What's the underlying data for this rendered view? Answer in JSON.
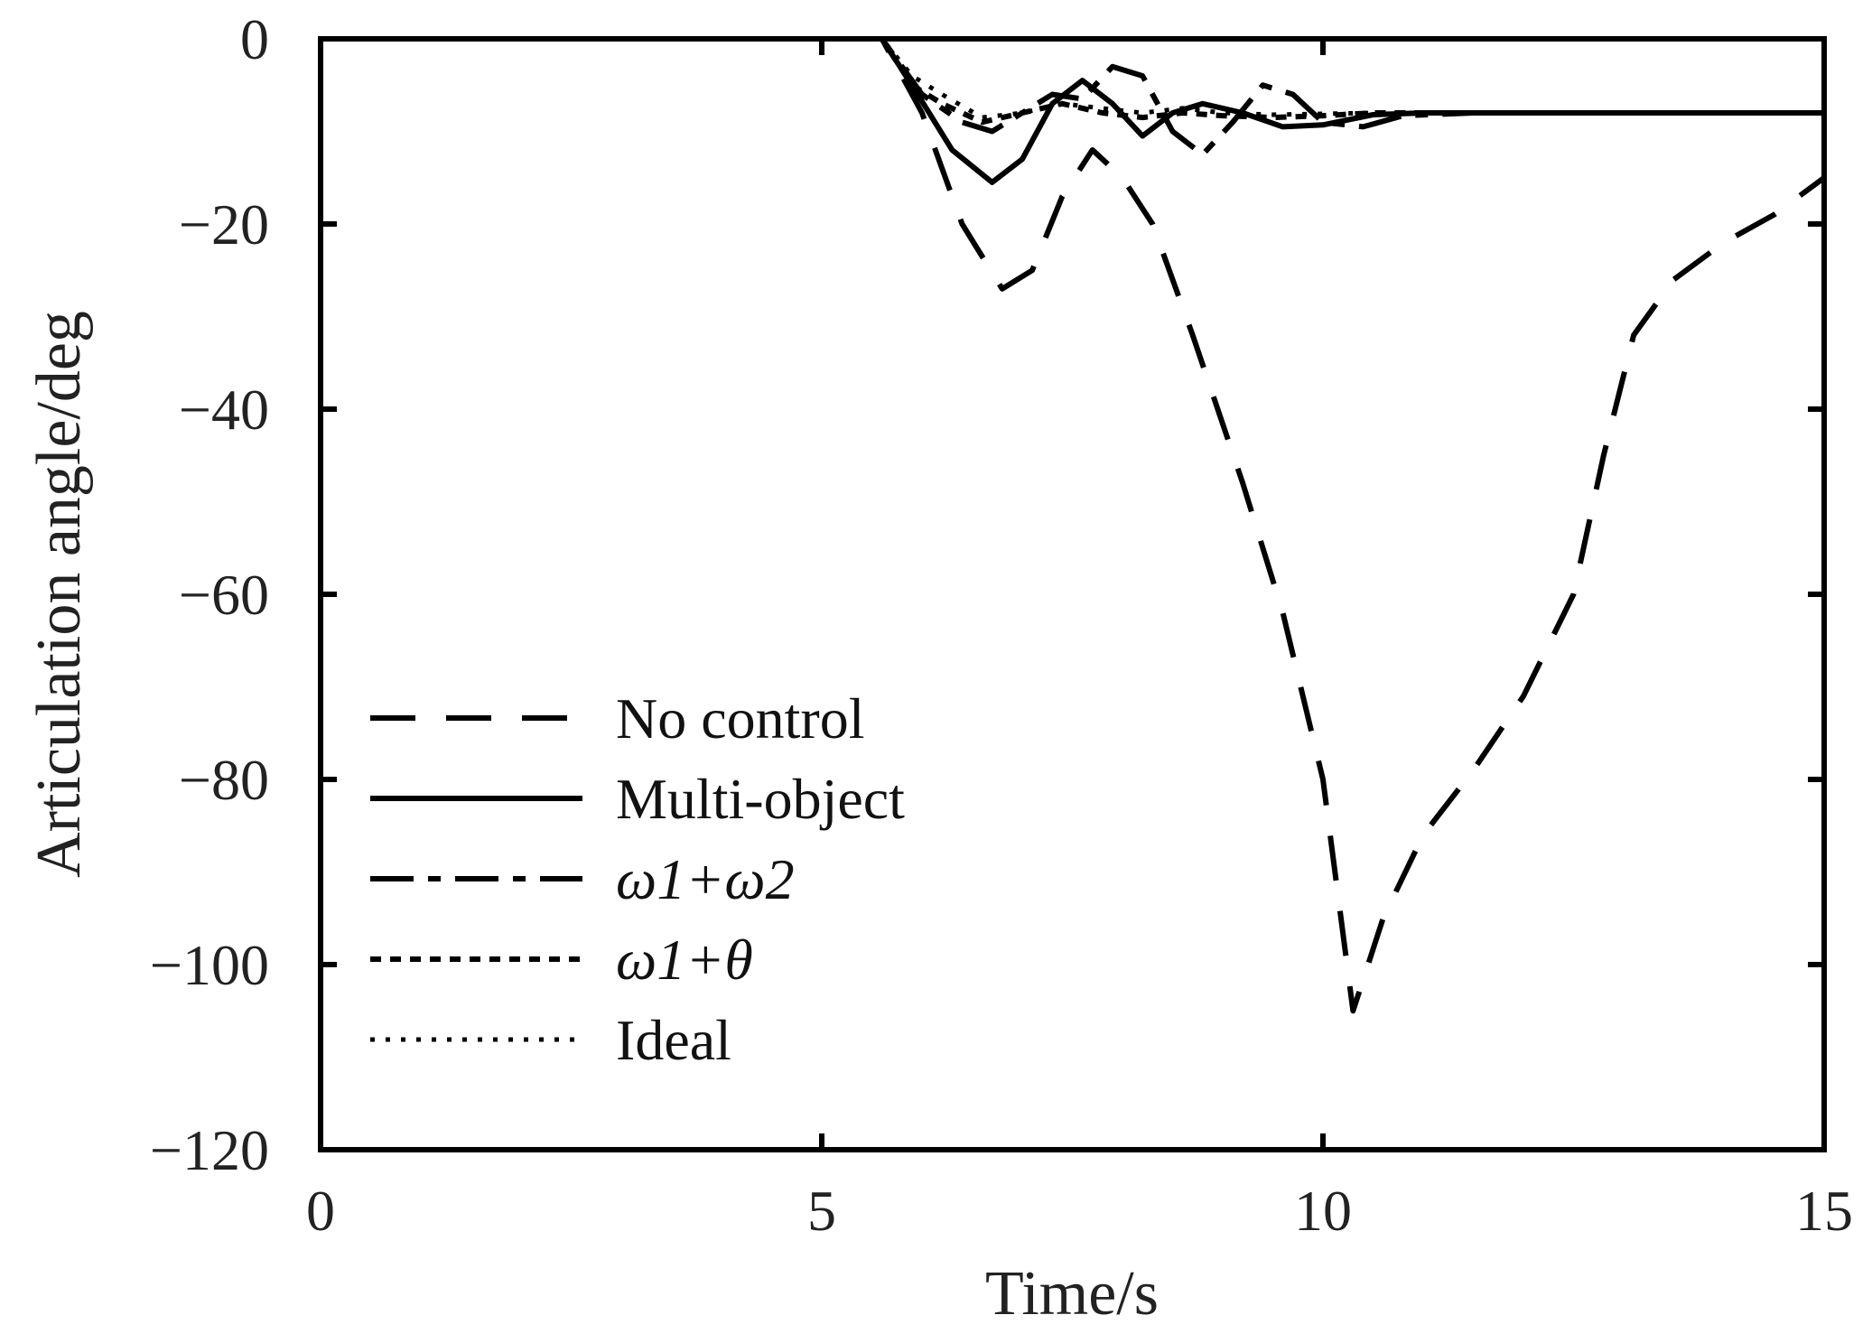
{
  "chart_data": {
    "type": "line",
    "xlabel": "Time/s",
    "ylabel": "Articulation angle/deg",
    "xlim": [
      0,
      15
    ],
    "ylim": [
      -120,
      0
    ],
    "xticks": [
      "0",
      "5",
      "10",
      "15"
    ],
    "yticks": [
      "0",
      "−20",
      "−40",
      "−60",
      "−80",
      "−100",
      "−120"
    ],
    "legend_position": "lower-left",
    "series": [
      {
        "name": "No control",
        "style": "long-dash",
        "color": "#000000",
        "points": [
          [
            0,
            0
          ],
          [
            5.6,
            0
          ],
          [
            6.0,
            -8
          ],
          [
            6.4,
            -20
          ],
          [
            6.8,
            -27
          ],
          [
            7.1,
            -25
          ],
          [
            7.4,
            -17
          ],
          [
            7.7,
            -12
          ],
          [
            8.0,
            -15
          ],
          [
            8.3,
            -20
          ],
          [
            8.7,
            -32
          ],
          [
            9.2,
            -48
          ],
          [
            9.6,
            -62
          ],
          [
            10.0,
            -80
          ],
          [
            10.3,
            -105
          ],
          [
            10.6,
            -95
          ],
          [
            11.0,
            -86
          ],
          [
            11.5,
            -79
          ],
          [
            12.0,
            -71
          ],
          [
            12.5,
            -60
          ],
          [
            12.8,
            -45
          ],
          [
            13.1,
            -32
          ],
          [
            13.5,
            -26
          ],
          [
            14.0,
            -22
          ],
          [
            14.5,
            -19
          ],
          [
            15.0,
            -15
          ]
        ]
      },
      {
        "name": "Multi-object",
        "style": "solid",
        "color": "#000000",
        "points": [
          [
            0,
            0
          ],
          [
            5.6,
            0
          ],
          [
            5.9,
            -5
          ],
          [
            6.3,
            -12
          ],
          [
            6.7,
            -15.5
          ],
          [
            7.0,
            -13
          ],
          [
            7.3,
            -7
          ],
          [
            7.6,
            -4.5
          ],
          [
            7.9,
            -7
          ],
          [
            8.2,
            -10.5
          ],
          [
            8.5,
            -8
          ],
          [
            8.8,
            -7
          ],
          [
            9.2,
            -8
          ],
          [
            9.6,
            -9.5
          ],
          [
            10.0,
            -9.3
          ],
          [
            10.5,
            -8.2
          ],
          [
            11.0,
            -8
          ],
          [
            12.0,
            -8
          ],
          [
            13.0,
            -8
          ],
          [
            14.0,
            -8
          ],
          [
            15.0,
            -8
          ]
        ]
      },
      {
        "name": "ω1+ω2",
        "style": "dash-dot",
        "color": "#000000",
        "points": [
          [
            0,
            0
          ],
          [
            5.6,
            0
          ],
          [
            6.0,
            -6
          ],
          [
            6.4,
            -9
          ],
          [
            6.7,
            -10
          ],
          [
            7.0,
            -8
          ],
          [
            7.3,
            -6
          ],
          [
            7.6,
            -6.5
          ],
          [
            7.9,
            -3
          ],
          [
            8.2,
            -4
          ],
          [
            8.5,
            -10
          ],
          [
            8.8,
            -12.5
          ],
          [
            9.1,
            -9
          ],
          [
            9.4,
            -5
          ],
          [
            9.7,
            -6
          ],
          [
            10.0,
            -9
          ],
          [
            10.4,
            -9.5
          ],
          [
            10.8,
            -8.3
          ],
          [
            11.5,
            -8
          ],
          [
            13.0,
            -8
          ],
          [
            15.0,
            -8
          ]
        ]
      },
      {
        "name": "ω1+θ",
        "style": "short-dash",
        "color": "#000000",
        "points": [
          [
            0,
            0
          ],
          [
            5.6,
            0
          ],
          [
            5.9,
            -5
          ],
          [
            6.2,
            -7
          ],
          [
            6.6,
            -9
          ],
          [
            7.0,
            -8
          ],
          [
            7.4,
            -7
          ],
          [
            7.8,
            -8
          ],
          [
            8.2,
            -8.5
          ],
          [
            8.6,
            -8
          ],
          [
            9.0,
            -8.3
          ],
          [
            9.5,
            -8.5
          ],
          [
            10.0,
            -8.3
          ],
          [
            10.5,
            -8
          ],
          [
            12.0,
            -8
          ],
          [
            15.0,
            -8
          ]
        ]
      },
      {
        "name": "Ideal",
        "style": "dotted",
        "color": "#000000",
        "points": [
          [
            0,
            0
          ],
          [
            5.6,
            0
          ],
          [
            5.9,
            -4
          ],
          [
            6.2,
            -6
          ],
          [
            6.6,
            -8.5
          ],
          [
            7.0,
            -8
          ],
          [
            7.4,
            -7
          ],
          [
            7.8,
            -7.5
          ],
          [
            8.2,
            -8
          ],
          [
            8.6,
            -7.5
          ],
          [
            9.0,
            -8
          ],
          [
            9.5,
            -8.2
          ],
          [
            10.0,
            -8.1
          ],
          [
            10.5,
            -8
          ],
          [
            12.0,
            -8
          ],
          [
            15.0,
            -8
          ]
        ]
      }
    ]
  }
}
